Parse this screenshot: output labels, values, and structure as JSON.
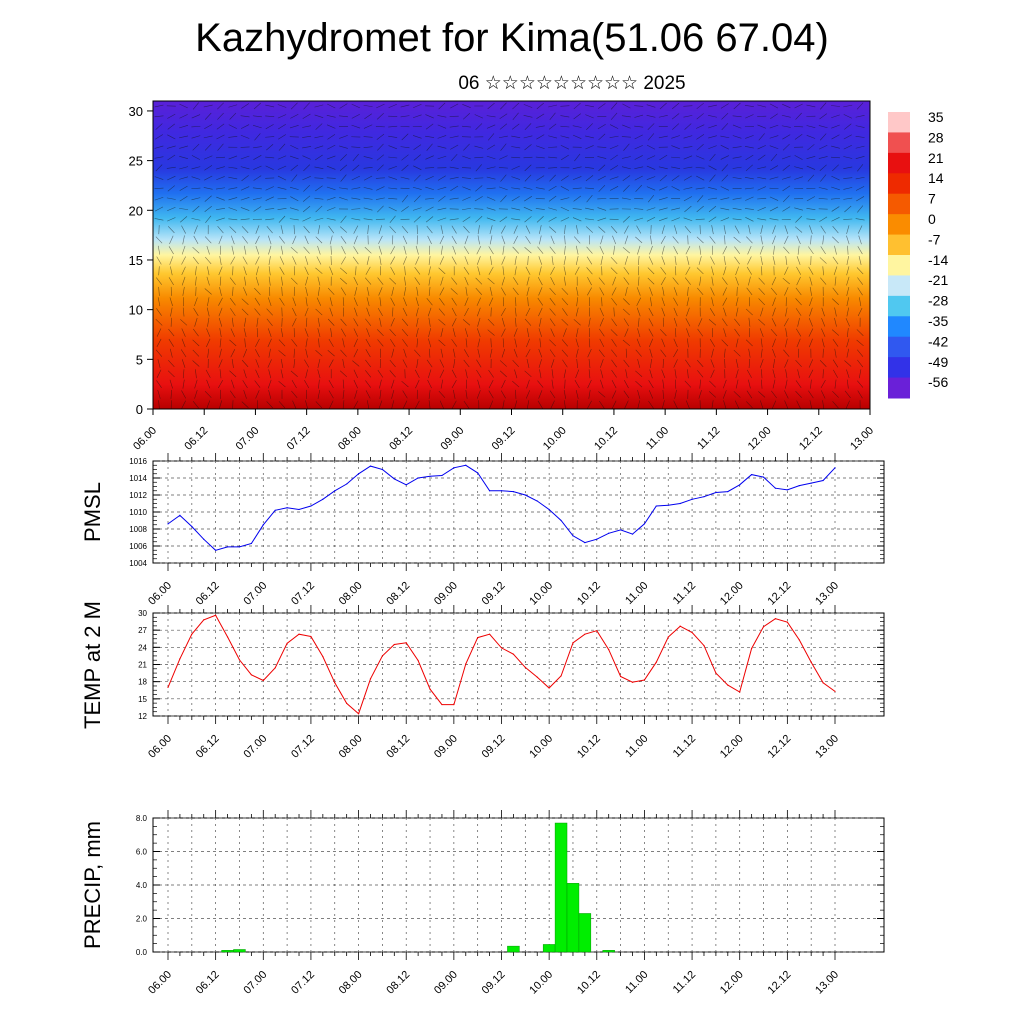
{
  "title": "Kazhydromet for Kima(51.06 67.04)",
  "subtitle": "06 ☆☆☆☆☆☆☆☆☆ 2025",
  "time_labels": [
    "06.00",
    "06.12",
    "07.00",
    "07.12",
    "08.00",
    "08.12",
    "09.00",
    "09.12",
    "10.00",
    "10.12",
    "11.00",
    "11.12",
    "12.00",
    "12.12",
    "13.00"
  ],
  "chart_data": [
    {
      "type": "heatmap",
      "ylim": [
        0,
        31
      ],
      "yticks": [
        0,
        5,
        10,
        15,
        20,
        25,
        30
      ],
      "colorbar_labels": [
        "35",
        "28",
        "21",
        "14",
        "7",
        "0",
        "-7",
        "-14",
        "-21",
        "-28",
        "-35",
        "-42",
        "-49",
        "-56"
      ],
      "colorbar_colors": [
        "#ffc8c8",
        "#f05050",
        "#e81010",
        "#ee2a00",
        "#f55a00",
        "#fa8c00",
        "#ffc030",
        "#fff5a0",
        "#c8e8f8",
        "#50c8f0",
        "#2088ff",
        "#3058f0",
        "#3232e8",
        "#6a20d8"
      ],
      "grid": false
    },
    {
      "type": "line",
      "ylabel": "PMSL",
      "ylim": [
        1004,
        1016
      ],
      "yticks": [
        1004,
        1006,
        1008,
        1010,
        1012,
        1014,
        1016
      ],
      "color": "#0000ee",
      "x": [
        0,
        3,
        6,
        9,
        12,
        15,
        18,
        21,
        24,
        27,
        30,
        33,
        36,
        39,
        42,
        45,
        48,
        51,
        54,
        57,
        60,
        63,
        66,
        69,
        72,
        75,
        78,
        81,
        84,
        87,
        90,
        93,
        96,
        99,
        102,
        105,
        108,
        111,
        114,
        117,
        120,
        123,
        126,
        129,
        132,
        135,
        138,
        141,
        144,
        147,
        150,
        153,
        156,
        159,
        162,
        165,
        168
      ],
      "values": [
        1008.6,
        1009.6,
        1008.3,
        1006.8,
        1005.5,
        1005.9,
        1005.9,
        1006.3,
        1008.5,
        1010.2,
        1010.5,
        1010.3,
        1010.7,
        1011.5,
        1012.5,
        1013.3,
        1014.5,
        1015.4,
        1015.0,
        1013.9,
        1013.2,
        1014.0,
        1014.2,
        1014.3,
        1015.2,
        1015.5,
        1014.6,
        1012.5,
        1012.5,
        1012.4,
        1012.0,
        1011.3,
        1010.3,
        1009.0,
        1007.2,
        1006.4,
        1006.8,
        1007.5,
        1007.9,
        1007.4,
        1008.6,
        1010.7,
        1010.8,
        1011.0,
        1011.5,
        1011.8,
        1012.3,
        1012.4,
        1013.2,
        1014.4,
        1014.1,
        1012.8,
        1012.6,
        1013.1,
        1013.4,
        1013.7,
        1015.2
      ],
      "grid": true
    },
    {
      "type": "line",
      "ylabel": "TEMP at 2 M",
      "ylim": [
        12,
        30
      ],
      "yticks": [
        12,
        15,
        18,
        21,
        24,
        27,
        30
      ],
      "color": "#ee0000",
      "x": [
        0,
        3,
        6,
        9,
        12,
        15,
        18,
        21,
        24,
        27,
        30,
        33,
        36,
        39,
        42,
        45,
        48,
        51,
        54,
        57,
        60,
        63,
        66,
        69,
        72,
        75,
        78,
        81,
        84,
        87,
        90,
        93,
        96,
        99,
        102,
        105,
        108,
        111,
        114,
        117,
        120,
        123,
        126,
        129,
        132,
        135,
        138,
        141,
        144,
        147,
        150,
        153,
        156,
        159,
        162,
        165,
        168
      ],
      "values": [
        17.0,
        22.0,
        26.3,
        28.8,
        29.6,
        25.8,
        21.8,
        19.2,
        18.2,
        20.4,
        24.7,
        26.3,
        25.9,
        22.4,
        17.8,
        14.2,
        12.4,
        18.5,
        22.5,
        24.5,
        24.8,
        21.7,
        16.7,
        14.0,
        14.0,
        21.1,
        25.7,
        26.3,
        23.9,
        22.8,
        20.5,
        18.8,
        16.9,
        19.0,
        24.8,
        26.3,
        26.9,
        23.6,
        18.9,
        17.9,
        18.3,
        21.4,
        25.8,
        27.7,
        26.6,
        24.3,
        19.5,
        17.4,
        16.2,
        23.8,
        27.6,
        29.0,
        28.4,
        25.3,
        21.4,
        17.8,
        16.3
      ],
      "grid": true
    },
    {
      "type": "bar",
      "ylabel": "PRECIP, mm",
      "ylim": [
        0,
        8
      ],
      "yticks": [
        "0.0",
        "2.0",
        "4.0",
        "6.0",
        "8.0"
      ],
      "color": "#00ee00",
      "x": [
        15,
        18,
        87,
        96,
        99,
        102,
        105,
        111
      ],
      "values": [
        0.1,
        0.15,
        0.35,
        0.45,
        7.7,
        4.1,
        2.3,
        0.1
      ],
      "grid": true
    }
  ]
}
